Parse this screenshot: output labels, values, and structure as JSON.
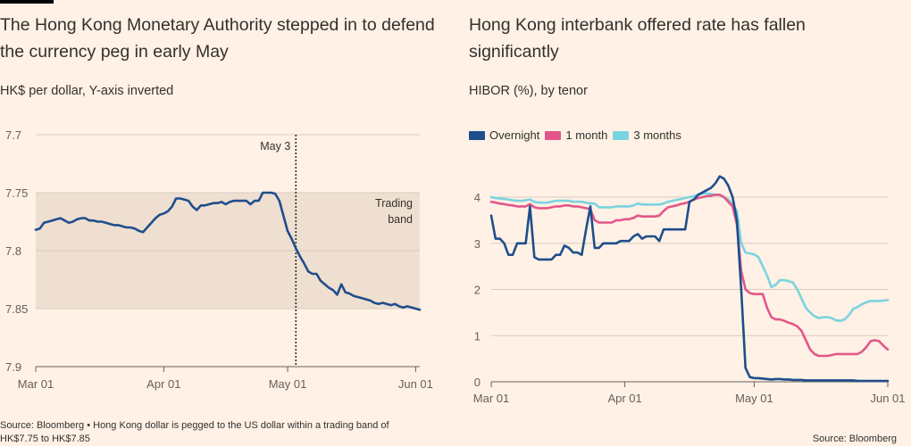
{
  "chart_data": [
    {
      "type": "line",
      "title": "The Hong Kong Monetary Authority stepped in to defend the currency peg in early May",
      "subtitle": "HK$ per dollar, Y-axis inverted",
      "x_ticks": [
        "Mar 01",
        "Apr 01",
        "May 01",
        "Jun 01"
      ],
      "y_ticks": [
        "7.7",
        "7.75",
        "7.8",
        "7.85",
        "7.9"
      ],
      "y_tick_values": [
        7.7,
        7.75,
        7.8,
        7.85,
        7.9
      ],
      "ylim": [
        7.7,
        7.9
      ],
      "y_inverted": true,
      "band": {
        "from": 7.75,
        "to": 7.85,
        "label_line1": "Trading",
        "label_line2": "band"
      },
      "marker": {
        "day": 63,
        "label": "May 3"
      },
      "series": [
        {
          "name": "",
          "color": "#1f4e8c",
          "x": [
            0,
            1,
            2,
            3,
            4,
            5,
            6,
            7,
            8,
            9,
            10,
            11,
            12,
            13,
            14,
            15,
            16,
            17,
            18,
            19,
            20,
            21,
            22,
            23,
            24,
            25,
            26,
            27,
            28,
            29,
            30,
            31,
            32,
            33,
            34,
            35,
            36,
            37,
            38,
            39,
            40,
            41,
            42,
            43,
            44,
            45,
            46,
            47,
            48,
            49,
            50,
            51,
            52,
            53,
            54,
            55,
            56,
            57,
            58,
            59,
            60,
            61,
            62,
            63,
            64,
            65,
            66,
            67,
            68,
            69,
            70,
            71,
            72,
            73,
            74,
            75,
            76,
            77,
            78,
            79,
            80,
            81,
            82,
            83,
            84,
            85,
            86,
            87,
            88,
            89,
            90,
            91,
            92,
            93
          ],
          "values": [
            7.782,
            7.781,
            7.776,
            7.775,
            7.774,
            7.773,
            7.772,
            7.774,
            7.776,
            7.775,
            7.773,
            7.772,
            7.772,
            7.774,
            7.774,
            7.775,
            7.775,
            7.776,
            7.777,
            7.778,
            7.778,
            7.779,
            7.78,
            7.78,
            7.781,
            7.783,
            7.784,
            7.78,
            7.776,
            7.772,
            7.769,
            7.768,
            7.766,
            7.762,
            7.755,
            7.755,
            7.756,
            7.757,
            7.762,
            7.765,
            7.761,
            7.761,
            7.76,
            7.759,
            7.759,
            7.758,
            7.76,
            7.758,
            7.757,
            7.757,
            7.757,
            7.757,
            7.76,
            7.757,
            7.757,
            7.75,
            7.75,
            7.75,
            7.751,
            7.757,
            7.77,
            7.783,
            7.79,
            7.798,
            7.805,
            7.811,
            7.818,
            7.82,
            7.82,
            7.826,
            7.829,
            7.832,
            7.834,
            7.838,
            7.829,
            7.836,
            7.837,
            7.839,
            7.84,
            7.841,
            7.842,
            7.843,
            7.845,
            7.846,
            7.845,
            7.846,
            7.847,
            7.846,
            7.848,
            7.849,
            7.848,
            7.849,
            7.85,
            7.851
          ]
        }
      ]
    },
    {
      "type": "line",
      "title": "Hong Kong interbank offered rate has fallen significantly",
      "subtitle": "HIBOR (%), by tenor",
      "x_ticks": [
        "Mar 01",
        "Apr 01",
        "May 01",
        "Jun 01"
      ],
      "y_ticks": [
        "0",
        "1",
        "2",
        "3",
        "4"
      ],
      "y_tick_values": [
        0,
        1,
        2,
        3,
        4
      ],
      "ylim": [
        0,
        4.5
      ],
      "legend_position": "top",
      "series": [
        {
          "name": "Overnight",
          "color": "#1f4e8c",
          "x": [
            0,
            1,
            2,
            3,
            4,
            5,
            6,
            7,
            8,
            9,
            10,
            11,
            12,
            13,
            14,
            15,
            16,
            17,
            18,
            19,
            20,
            21,
            22,
            23,
            24,
            25,
            26,
            27,
            28,
            29,
            30,
            31,
            32,
            33,
            34,
            35,
            36,
            37,
            38,
            39,
            40,
            41,
            42,
            43,
            44,
            45,
            46,
            47,
            48,
            49,
            50,
            51,
            52,
            53,
            54,
            55,
            56,
            57,
            58,
            59,
            60,
            61,
            62,
            63,
            64,
            65,
            66,
            67,
            68,
            69,
            70,
            71,
            72,
            73,
            74,
            75,
            76,
            77,
            78,
            79,
            80,
            81,
            82,
            83,
            84,
            85,
            86,
            87,
            88,
            89,
            90,
            91,
            92
          ],
          "values": [
            3.6,
            3.1,
            3.1,
            3.0,
            2.75,
            2.75,
            3.0,
            3.0,
            3.0,
            3.8,
            2.7,
            2.65,
            2.65,
            2.65,
            2.65,
            2.75,
            2.75,
            2.95,
            2.9,
            2.8,
            2.8,
            2.75,
            3.3,
            3.8,
            2.9,
            2.9,
            3.0,
            3.0,
            3.0,
            3.0,
            3.05,
            3.05,
            3.05,
            3.15,
            3.2,
            3.1,
            3.15,
            3.15,
            3.15,
            3.05,
            3.3,
            3.3,
            3.3,
            3.3,
            3.3,
            3.3,
            3.9,
            3.95,
            4.05,
            4.1,
            4.15,
            4.2,
            4.3,
            4.45,
            4.4,
            4.25,
            4.0,
            3.5,
            2.0,
            0.3,
            0.1,
            0.08,
            0.08,
            0.07,
            0.06,
            0.05,
            0.06,
            0.06,
            0.05,
            0.05,
            0.04,
            0.04,
            0.04,
            0.03,
            0.03,
            0.03,
            0.03,
            0.03,
            0.03,
            0.03,
            0.03,
            0.03,
            0.03,
            0.03,
            0.03,
            0.02,
            0.02,
            0.02,
            0.02,
            0.02,
            0.02,
            0.02,
            0.02
          ]
        },
        {
          "name": "1 month",
          "color": "#e2578b",
          "x": [
            0,
            1,
            2,
            3,
            4,
            5,
            6,
            7,
            8,
            9,
            10,
            11,
            12,
            13,
            14,
            15,
            16,
            17,
            18,
            19,
            20,
            21,
            22,
            23,
            24,
            25,
            26,
            27,
            28,
            29,
            30,
            31,
            32,
            33,
            34,
            35,
            36,
            37,
            38,
            39,
            40,
            41,
            42,
            43,
            44,
            45,
            46,
            47,
            48,
            49,
            50,
            51,
            52,
            53,
            54,
            55,
            56,
            57,
            58,
            59,
            60,
            61,
            62,
            63,
            64,
            65,
            66,
            67,
            68,
            69,
            70,
            71,
            72,
            73,
            74,
            75,
            76,
            77,
            78,
            79,
            80,
            81,
            82,
            83,
            84,
            85,
            86,
            87,
            88,
            89,
            90,
            91,
            92
          ],
          "values": [
            3.9,
            3.88,
            3.86,
            3.85,
            3.83,
            3.82,
            3.8,
            3.8,
            3.8,
            3.85,
            3.78,
            3.76,
            3.76,
            3.76,
            3.78,
            3.8,
            3.8,
            3.82,
            3.82,
            3.8,
            3.8,
            3.78,
            3.76,
            3.74,
            3.5,
            3.45,
            3.45,
            3.45,
            3.45,
            3.5,
            3.5,
            3.52,
            3.52,
            3.55,
            3.6,
            3.58,
            3.58,
            3.58,
            3.58,
            3.6,
            3.7,
            3.78,
            3.8,
            3.82,
            3.85,
            3.87,
            3.9,
            3.95,
            3.98,
            4.0,
            4.02,
            4.03,
            4.05,
            4.05,
            4.0,
            3.9,
            3.8,
            3.4,
            2.4,
            2.0,
            1.92,
            1.9,
            1.9,
            1.9,
            1.6,
            1.4,
            1.35,
            1.35,
            1.32,
            1.28,
            1.25,
            1.2,
            1.1,
            0.9,
            0.7,
            0.6,
            0.56,
            0.56,
            0.56,
            0.58,
            0.6,
            0.6,
            0.6,
            0.6,
            0.6,
            0.6,
            0.65,
            0.75,
            0.88,
            0.9,
            0.88,
            0.78,
            0.7
          ]
        },
        {
          "name": "3 months",
          "color": "#7ad3e0",
          "x": [
            0,
            1,
            2,
            3,
            4,
            5,
            6,
            7,
            8,
            9,
            10,
            11,
            12,
            13,
            14,
            15,
            16,
            17,
            18,
            19,
            20,
            21,
            22,
            23,
            24,
            25,
            26,
            27,
            28,
            29,
            30,
            31,
            32,
            33,
            34,
            35,
            36,
            37,
            38,
            39,
            40,
            41,
            42,
            43,
            44,
            45,
            46,
            47,
            48,
            49,
            50,
            51,
            52,
            53,
            54,
            55,
            56,
            57,
            58,
            59,
            60,
            61,
            62,
            63,
            64,
            65,
            66,
            67,
            68,
            69,
            70,
            71,
            72,
            73,
            74,
            75,
            76,
            77,
            78,
            79,
            80,
            81,
            82,
            83,
            84,
            85,
            86,
            87,
            88,
            89,
            90,
            91,
            92
          ],
          "values": [
            4.0,
            3.98,
            3.97,
            3.96,
            3.95,
            3.93,
            3.92,
            3.92,
            3.93,
            3.95,
            3.9,
            3.88,
            3.88,
            3.88,
            3.9,
            3.92,
            3.92,
            3.92,
            3.92,
            3.9,
            3.9,
            3.9,
            3.88,
            3.86,
            3.86,
            3.78,
            3.78,
            3.78,
            3.78,
            3.8,
            3.8,
            3.8,
            3.8,
            3.82,
            3.86,
            3.84,
            3.84,
            3.84,
            3.84,
            3.84,
            3.86,
            3.9,
            3.92,
            3.94,
            3.96,
            3.98,
            4.0,
            4.02,
            4.05,
            4.08,
            4.08,
            4.07,
            4.05,
            4.05,
            4.0,
            3.95,
            3.85,
            3.7,
            3.0,
            2.8,
            2.78,
            2.76,
            2.7,
            2.5,
            2.3,
            2.05,
            2.1,
            2.2,
            2.2,
            2.18,
            2.15,
            2.0,
            1.8,
            1.6,
            1.5,
            1.42,
            1.38,
            1.4,
            1.4,
            1.38,
            1.33,
            1.32,
            1.35,
            1.45,
            1.58,
            1.62,
            1.68,
            1.72,
            1.75,
            1.75,
            1.75,
            1.76,
            1.77
          ]
        }
      ]
    }
  ],
  "footer": {
    "left_line1": "Source: Bloomberg • Hong Kong dollar is pegged to the US dollar within a trading band of",
    "left_line2": "HK$7.75 to HK$7.85",
    "right": "Source: Bloomberg"
  }
}
